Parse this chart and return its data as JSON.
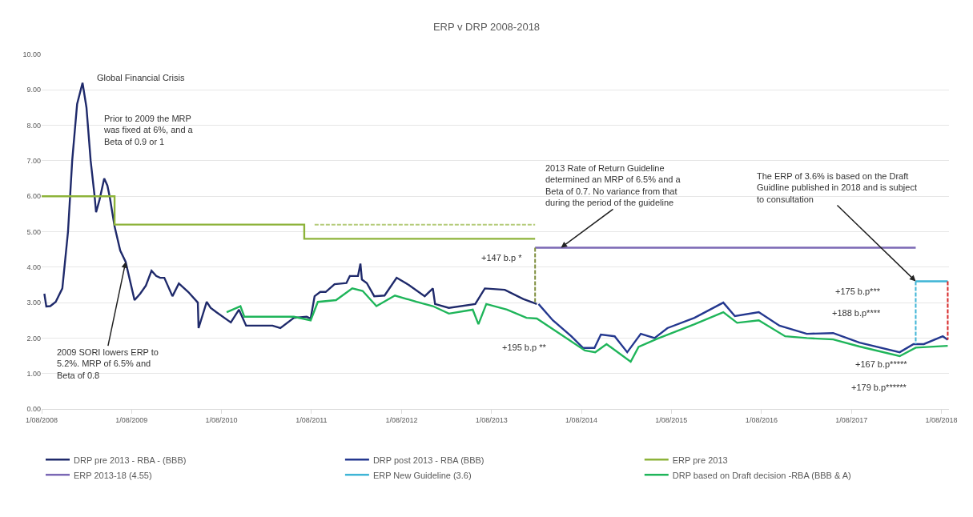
{
  "chart_data": {
    "type": "line",
    "title": "ERP v DRP 2008-2018",
    "xlim": [
      "2008-08-01",
      "2018-09-01"
    ],
    "xticks": [
      {
        "value": "2008-08-01",
        "label": "1/08/2008"
      },
      {
        "value": "2009-08-01",
        "label": "1/08/2009"
      },
      {
        "value": "2010-08-01",
        "label": "1/08/2010"
      },
      {
        "value": "2011-08-01",
        "label": "1/08/2011"
      },
      {
        "value": "2012-08-01",
        "label": "1/08/2012"
      },
      {
        "value": "2013-08-01",
        "label": "1/08/2013"
      },
      {
        "value": "2014-08-01",
        "label": "1/08/2014"
      },
      {
        "value": "2015-08-01",
        "label": "1/08/2015"
      },
      {
        "value": "2016-08-01",
        "label": "1/08/2016"
      },
      {
        "value": "2017-08-01",
        "label": "1/08/2017"
      },
      {
        "value": "2018-08-01",
        "label": "1/08/2018"
      }
    ],
    "ylim": [
      0,
      10
    ],
    "yticks": [
      {
        "value": 0,
        "label": "0.00"
      },
      {
        "value": 1,
        "label": "1.00"
      },
      {
        "value": 2,
        "label": "2.00"
      },
      {
        "value": 3,
        "label": "3.00"
      },
      {
        "value": 4,
        "label": "4.00"
      },
      {
        "value": 5,
        "label": "5.00"
      },
      {
        "value": 6,
        "label": "6.00"
      },
      {
        "value": 7,
        "label": "7.00"
      },
      {
        "value": 8,
        "label": "8.00"
      },
      {
        "value": 9,
        "label": "9.00"
      },
      {
        "value": 10,
        "label": "10.00"
      }
    ],
    "grid": "y",
    "legend": "bottom",
    "series": [
      {
        "name": "DRP pre 2013 - RBA - (BBB)",
        "color": "#1f2a6b",
        "x": [
          "2008-08-12",
          "2008-08-20",
          "2008-09-05",
          "2008-09-27",
          "2008-10-24",
          "2008-11-16",
          "2008-12-03",
          "2008-12-23",
          "2009-01-14",
          "2009-01-30",
          "2009-02-16",
          "2009-03-04",
          "2009-03-10",
          "2009-03-24",
          "2009-04-12",
          "2009-04-25",
          "2009-05-05",
          "2009-05-24",
          "2009-06-16",
          "2009-07-08",
          "2009-08-13",
          "2009-09-05",
          "2009-09-28",
          "2009-10-21",
          "2009-11-09",
          "2009-11-25",
          "2009-12-12",
          "2010-01-14",
          "2010-02-09",
          "2010-03-19",
          "2010-04-27",
          "2010-04-30",
          "2010-06-02",
          "2010-06-18",
          "2010-07-11",
          "2010-09-08",
          "2010-10-11",
          "2010-11-09",
          "2011-02-24",
          "2011-03-28",
          "2011-05-22",
          "2011-07-13",
          "2011-07-29",
          "2011-08-14",
          "2011-09-06",
          "2011-09-28",
          "2011-11-03",
          "2011-12-21",
          "2012-01-04",
          "2012-02-06",
          "2012-02-16",
          "2012-02-22",
          "2012-03-13",
          "2012-04-12",
          "2012-05-24",
          "2012-07-12",
          "2012-08-30",
          "2012-11-03",
          "2012-12-06",
          "2012-12-15",
          "2013-02-09",
          "2013-05-27",
          "2013-07-05",
          "2013-09-24",
          "2013-12-08",
          "2014-02-01"
        ],
        "values": [
          3.25,
          2.89,
          2.9,
          3.02,
          3.4,
          5.0,
          7.0,
          8.6,
          9.2,
          8.5,
          7.0,
          6.0,
          5.55,
          5.9,
          6.5,
          6.3,
          5.96,
          5.15,
          4.47,
          4.15,
          3.07,
          3.25,
          3.48,
          3.9,
          3.75,
          3.7,
          3.7,
          3.18,
          3.54,
          3.3,
          3.0,
          2.28,
          3.02,
          2.85,
          2.73,
          2.44,
          2.8,
          2.35,
          2.35,
          2.28,
          2.57,
          2.6,
          2.55,
          3.18,
          3.3,
          3.3,
          3.52,
          3.55,
          3.75,
          3.75,
          4.1,
          3.65,
          3.55,
          3.18,
          3.2,
          3.7,
          3.5,
          3.18,
          3.4,
          2.96,
          2.85,
          2.96,
          3.4,
          3.36,
          3.1,
          2.96
        ]
      },
      {
        "name": "DRP post 2013 - RBA (BBB)",
        "color": "#24388f",
        "x": [
          "2014-02-08",
          "2014-04-07",
          "2014-06-21",
          "2014-08-08",
          "2014-09-23",
          "2014-10-19",
          "2014-12-14",
          "2015-02-03",
          "2015-03-30",
          "2015-05-25",
          "2015-07-16",
          "2015-11-03",
          "2016-02-28",
          "2016-04-15",
          "2016-07-21",
          "2016-10-13",
          "2017-02-01",
          "2017-05-19",
          "2017-09-03",
          "2018-02-13",
          "2018-04-10",
          "2018-05-22",
          "2018-08-07",
          "2018-08-27"
        ],
        "values": [
          2.96,
          2.5,
          2.05,
          1.72,
          1.72,
          2.1,
          2.05,
          1.6,
          2.12,
          2.0,
          2.28,
          2.57,
          3.0,
          2.62,
          2.73,
          2.35,
          2.12,
          2.14,
          1.87,
          1.6,
          1.83,
          1.83,
          2.05,
          1.95
        ]
      },
      {
        "name": "ERP pre 2013",
        "type": "step",
        "color": "#8db33a",
        "x": [
          "2008-08-01",
          "2009-05-24",
          "2011-07-03",
          "2014-01-25"
        ],
        "values": [
          6.0,
          5.2,
          4.8,
          4.8
        ]
      },
      {
        "name": "ERP 2013-18 (4.55)",
        "color": "#7b68b5",
        "x": [
          "2014-01-25",
          "2018-04-19"
        ],
        "values": [
          4.55,
          4.55
        ]
      },
      {
        "name": "ERP New Guideline (3.6)",
        "color": "#3fb5d6",
        "x": [
          "2018-04-19",
          "2018-08-27"
        ],
        "values": [
          3.6,
          3.6
        ]
      },
      {
        "name": "DRP based on Draft decision -RBA (BBB & A)",
        "color": "#1fb55a",
        "x": [
          "2010-08-22",
          "2010-10-17",
          "2010-11-02",
          "2011-02-01",
          "2011-05-22",
          "2011-07-29",
          "2011-08-27",
          "2011-11-09",
          "2012-01-14",
          "2012-02-25",
          "2012-04-21",
          "2012-07-05",
          "2012-10-01",
          "2012-12-06",
          "2013-02-09",
          "2013-05-17",
          "2013-06-09",
          "2013-07-11",
          "2013-10-03",
          "2013-12-21",
          "2014-02-01",
          "2014-05-10",
          "2014-08-15",
          "2014-09-26",
          "2014-11-11",
          "2015-02-17",
          "2015-03-21",
          "2015-06-04",
          "2015-11-03",
          "2016-02-28",
          "2016-04-24",
          "2016-07-21",
          "2016-11-05",
          "2017-02-01",
          "2017-05-19",
          "2017-09-03",
          "2018-02-13",
          "2018-04-19",
          "2018-08-27"
        ],
        "values": [
          2.73,
          2.9,
          2.6,
          2.6,
          2.6,
          2.5,
          3.02,
          3.07,
          3.4,
          3.33,
          2.9,
          3.2,
          3.02,
          2.9,
          2.69,
          2.8,
          2.39,
          2.96,
          2.8,
          2.57,
          2.55,
          2.1,
          1.65,
          1.6,
          1.83,
          1.33,
          1.75,
          1.98,
          2.39,
          2.73,
          2.43,
          2.5,
          2.05,
          2.0,
          1.96,
          1.76,
          1.49,
          1.73,
          1.78
        ]
      },
      {
        "color": "#b5cc7a",
        "line_style": "dashed",
        "x": [
          "2011-08-14",
          "2014-01-25"
        ],
        "values": [
          5.2,
          5.2
        ]
      },
      {
        "color": "#7f8f3f",
        "line_style": "dashed",
        "x": [
          "2014-01-25",
          "2014-01-25"
        ],
        "values": [
          4.55,
          3.0
        ]
      },
      {
        "color": "#3fb5d6",
        "line_style": "dashed",
        "x": [
          "2018-04-19",
          "2018-04-19"
        ],
        "values": [
          3.6,
          1.83
        ]
      },
      {
        "color": "#d62728",
        "line_style": "dashed",
        "x": [
          "2018-08-27",
          "2018-08-27"
        ],
        "values": [
          3.6,
          1.95
        ]
      }
    ],
    "annotations": [
      {
        "text": "Global Financial Crisis",
        "x": "2009-01-14",
        "y": 9.2
      },
      "Prior to 2009 the MRP was fixed at 6%, and a Beta of 0.9 or 1",
      {
        "text": "2009 SORI lowers ERP to 5.2%. MRP of 6.5% and Beta of 0.8",
        "x": "2009-07-08",
        "y": 4.15
      },
      {
        "text": "2013 Rate of Return Guideline determined an MRP of 6.5% and a Beta of 0.7. No variance from that during the period of the guideline",
        "x": "2014-05-10",
        "y": 4.55
      },
      {
        "text": "The ERP of 3.6% is based on the Draft Guidline published in 2018 and is subject to consultation",
        "x": "2018-04-19",
        "y": 3.6
      },
      "+147 b.p *",
      "+195 b.p **",
      "+175 b.p***",
      "+188 b.p****",
      "+167 b.p*****",
      "+179 b.p******"
    ]
  }
}
